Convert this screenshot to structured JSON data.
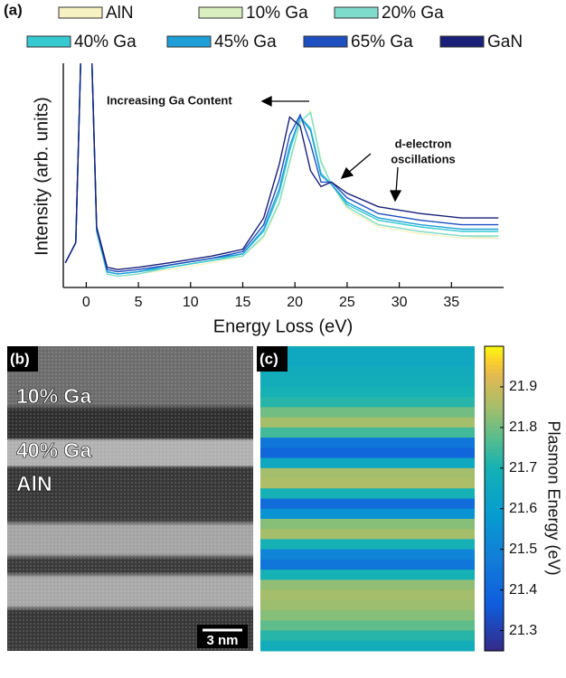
{
  "chart_data": [
    {
      "type": "line",
      "panel_label": "(a)",
      "x_label": "Energy Loss (eV)",
      "y_label": "Intensity (arb. units)",
      "annotations": [
        "Increasing Ga Content",
        "d-electron",
        "oscillations"
      ],
      "x": [
        -2,
        -1,
        -0.3,
        0.3,
        1,
        2,
        3,
        5,
        8,
        12,
        15,
        17,
        18.5,
        19.5,
        20.5,
        21.5,
        22.5,
        23.5,
        25,
        28,
        32,
        36,
        39.5
      ],
      "xlim": [
        -2.2,
        40
      ],
      "xticks": [
        0,
        5,
        10,
        15,
        20,
        25,
        30,
        35
      ],
      "ylim": [
        0,
        100
      ],
      "series": [
        {
          "name": "AlN",
          "color": "#f6f2c4",
          "values": [
            11,
            20,
            140,
            140,
            24,
            6,
            5,
            6,
            8,
            11,
            14,
            22,
            37,
            55,
            73,
            79,
            57,
            46,
            35,
            27,
            24,
            22,
            22
          ]
        },
        {
          "name": "10% Ga",
          "color": "#d9efc0",
          "values": [
            11,
            20,
            140,
            140,
            25,
            6,
            5,
            6,
            9,
            12,
            14,
            23,
            38,
            56,
            74,
            78,
            56,
            46,
            36,
            28,
            25,
            23,
            22
          ]
        },
        {
          "name": "20% Ga",
          "color": "#7fdccc",
          "values": [
            11,
            20,
            140,
            140,
            25,
            6,
            5,
            6,
            9,
            12,
            14,
            23,
            38,
            56,
            74,
            78,
            56,
            46,
            36,
            28,
            25,
            23,
            23
          ]
        },
        {
          "name": "40% Ga",
          "color": "#35c9d2",
          "values": [
            11,
            20,
            140,
            140,
            25,
            7,
            6,
            7,
            9,
            12,
            15,
            25,
            42,
            61,
            76,
            71,
            51,
            46,
            37,
            30,
            27,
            25,
            25
          ]
        },
        {
          "name": "45% Ga",
          "color": "#1e9fd8",
          "values": [
            11,
            20,
            140,
            140,
            26,
            7,
            6,
            7,
            10,
            13,
            15,
            26,
            44,
            63,
            76,
            70,
            50,
            46,
            38,
            31,
            28,
            26,
            26
          ]
        },
        {
          "name": "65% Ga",
          "color": "#1e4fc0",
          "values": [
            11,
            20,
            140,
            140,
            26,
            8,
            7,
            8,
            10,
            13,
            16,
            28,
            48,
            68,
            77,
            64,
            47,
            47,
            40,
            33,
            30,
            28,
            28
          ]
        },
        {
          "name": "GaN",
          "color": "#1a1f78",
          "values": [
            11,
            20,
            140,
            140,
            27,
            9,
            8,
            9,
            11,
            14,
            17,
            31,
            55,
            76,
            72,
            52,
            45,
            47,
            42,
            36,
            33,
            31,
            31
          ]
        }
      ]
    },
    {
      "type": "heatmap",
      "panel_label": "(c)",
      "colorbar_label": "Plasmon Energy (eV)",
      "colormap": "parula",
      "values": [
        21.65,
        21.65,
        21.67,
        21.68,
        21.7,
        21.72,
        21.8,
        21.85,
        21.75,
        21.45,
        21.4,
        21.65,
        21.85,
        21.86,
        21.7,
        21.42,
        21.55,
        21.82,
        21.85,
        21.7,
        21.5,
        21.45,
        21.7,
        21.83,
        21.85,
        21.84,
        21.82,
        21.78,
        21.72,
        21.68
      ],
      "zlim": [
        21.25,
        22.0
      ],
      "zticks": [
        21.3,
        21.4,
        21.5,
        21.6,
        21.7,
        21.8,
        21.9
      ]
    },
    {
      "type": "image",
      "panel_label": "(b)",
      "labels": [
        "10% Ga",
        "40% Ga",
        "AlN"
      ],
      "scale_bar": "3 nm"
    }
  ]
}
